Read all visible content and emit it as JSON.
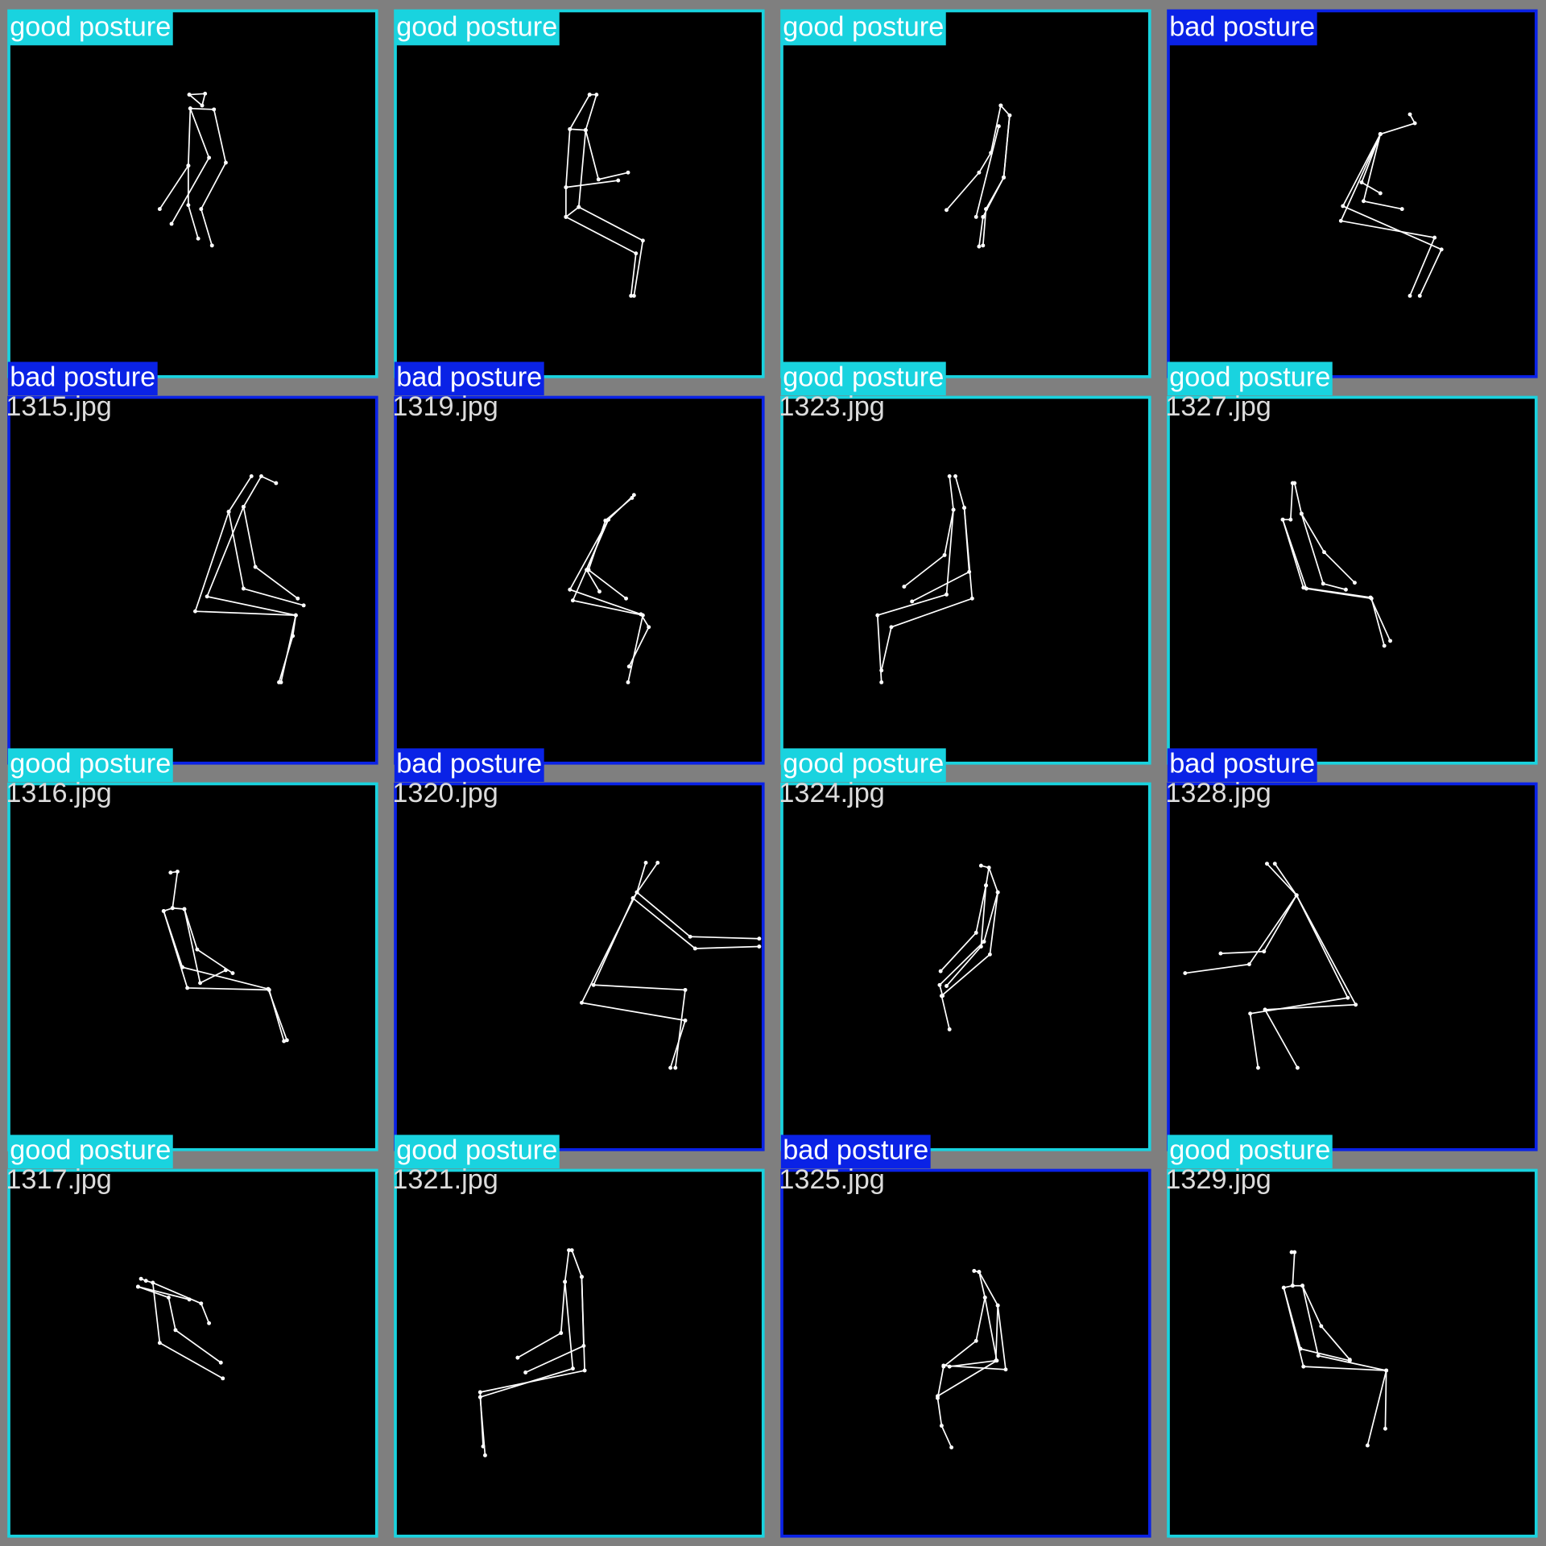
{
  "tiles": [
    {
      "label": "good posture",
      "color": "#19d3df"
    },
    {
      "label": "good posture",
      "color": "#19d3df"
    },
    {
      "label": "good posture",
      "color": "#19d3df"
    },
    {
      "label": "bad posture",
      "color": "#0a22e6"
    },
    {
      "label": "bad posture",
      "color": "#0a22e6",
      "file": "1315.jpg"
    },
    {
      "label": "bad posture",
      "color": "#0a22e6",
      "file": "1319.jpg"
    },
    {
      "label": "good posture",
      "color": "#19d3df",
      "file": "1323.jpg"
    },
    {
      "label": "good posture",
      "color": "#19d3df",
      "file": "1327.jpg"
    },
    {
      "label": "good posture",
      "color": "#19d3df",
      "file": "1316.jpg"
    },
    {
      "label": "bad posture",
      "color": "#0a22e6",
      "file": "1320.jpg"
    },
    {
      "label": "good posture",
      "color": "#19d3df",
      "file": "1324.jpg"
    },
    {
      "label": "bad posture",
      "color": "#0a22e6",
      "file": "1328.jpg"
    },
    {
      "label": "good posture",
      "color": "#19d3df",
      "file": "1317.jpg"
    },
    {
      "label": "good posture",
      "color": "#19d3df",
      "file": "1321.jpg"
    },
    {
      "label": "bad posture",
      "color": "#0a22e6",
      "file": "1325.jpg"
    },
    {
      "label": "good posture",
      "color": "#19d3df",
      "file": "1329.jpg"
    }
  ]
}
